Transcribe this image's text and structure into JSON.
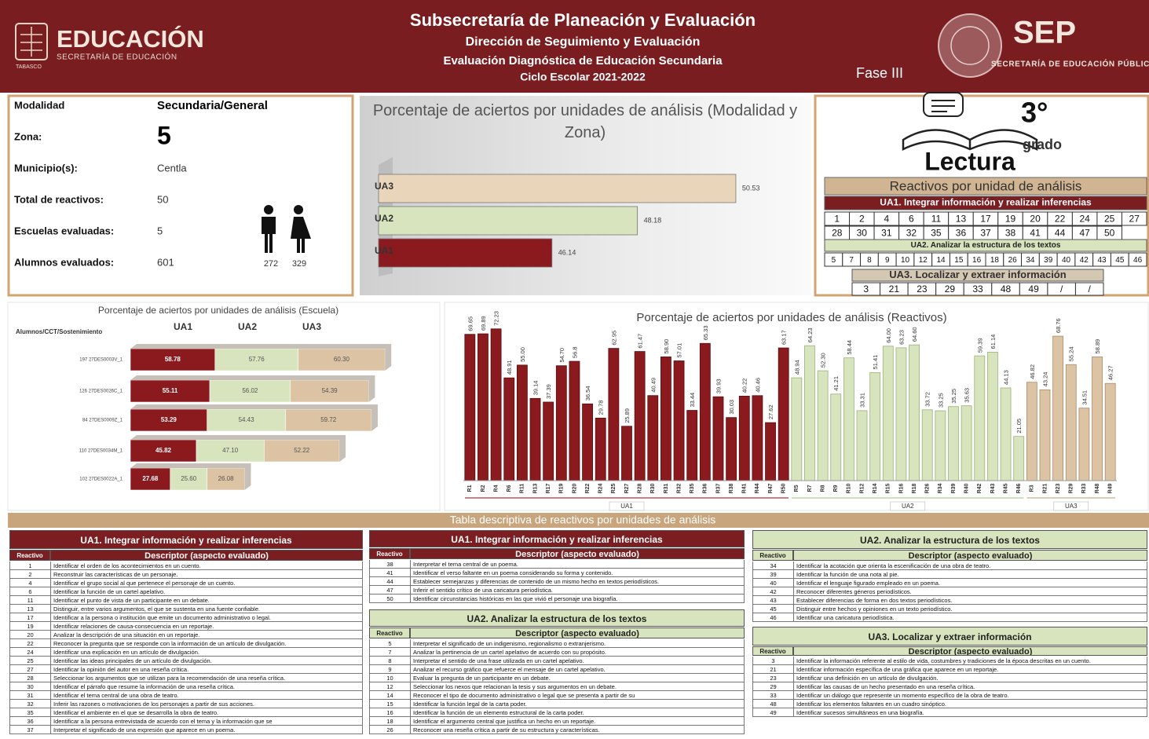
{
  "header": {
    "logo_title": "EDUCACIÓN",
    "logo_subtitle": "SECRETARÍA DE EDUCACIÓN",
    "logo_state": "TABASCO",
    "title": "Subsecretaría de Planeación y Evaluación",
    "subtitle1": "Dirección de Seguimiento y Evaluación",
    "subtitle2": "Evaluación Diagnóstica de Educación Secundaria",
    "subtitle3": "Ciclo Escolar 2021-2022",
    "phase": "Fase III",
    "sep_title": "SEP",
    "sep_subtitle": "SECRETARÍA DE EDUCACIÓN PÚBLICA"
  },
  "info": {
    "rows": [
      [
        "Modalidad",
        "Secundaria/General"
      ],
      [
        "Zona:",
        5
      ],
      [
        "Municipio(s):",
        "Centla"
      ],
      [
        "Total de reactivos:",
        50
      ],
      [
        "Escuelas evaluadas:",
        5
      ],
      [
        "Alumnos evaluados:",
        601
      ]
    ],
    "male": 272,
    "female": 329
  },
  "reactivos": {
    "grade": "3°",
    "grade_word": "grado",
    "subject": "Lectura",
    "title": "Reactivos por unidad de análisis",
    "units": [
      {
        "name": "UA1. Integrar información y realizar inferencias",
        "items": [
          1,
          2,
          4,
          6,
          11,
          13,
          17,
          19,
          20,
          22,
          24,
          25,
          27,
          28,
          30,
          31,
          32,
          35,
          36,
          37,
          38,
          41,
          44,
          47,
          50
        ]
      },
      {
        "name": "UA2. Analizar la estructura de los textos",
        "items": [
          5,
          7,
          8,
          9,
          10,
          12,
          14,
          15,
          16,
          18,
          26,
          34,
          39,
          40,
          42,
          43,
          45,
          46
        ]
      },
      {
        "name": "UA3. Localizar y extraer información",
        "items": [
          3,
          21,
          23,
          29,
          33,
          48,
          49,
          "/",
          "/"
        ]
      }
    ]
  },
  "chart_data": [
    {
      "type": "bar",
      "orientation": "horizontal",
      "title": "Porcentaje de aciertos por unidades de análisis (Modalidad y Zona)",
      "categories": [
        "UA1",
        "UA2",
        "UA3"
      ],
      "values": [
        46.14,
        48.18,
        50.53
      ],
      "colors": [
        "#8b1a1f",
        "#d7e4bd",
        "#e8d5ba"
      ],
      "xlim": [
        42,
        51
      ]
    },
    {
      "type": "bar",
      "orientation": "horizontal",
      "stacked": true,
      "title": "Porcentaje de aciertos por unidades de análisis (Escuela)",
      "category_label": "Alumnos/CCT/Sostenimiento",
      "categories": [
        "197 27DES0003V_1",
        "126 27DES0026C_1",
        "84 27DES0009Z_1",
        "110 27DES0034M_1",
        "102 27DES0022A_1"
      ],
      "series": [
        {
          "name": "UA1",
          "color": "#8b1a1f",
          "values": [
            58.78,
            55.11,
            53.29,
            45.82,
            27.68
          ],
          "value_labels": [
            "58.78",
            "55.11",
            "53.29",
            "45.82",
            "27.68"
          ]
        },
        {
          "name": "UA2",
          "color": "#d7e4bd",
          "values": [
            57.76,
            56.02,
            54.43,
            47.1,
            25.6
          ],
          "value_labels": [
            "57.76",
            "56.02",
            "54.43",
            "47.10",
            "25.60"
          ]
        },
        {
          "name": "UA3",
          "color": "#dcc3a3",
          "values": [
            60.3,
            54.39,
            59.72,
            52.22,
            26.08
          ],
          "value_labels": [
            "60.30",
            "54.39",
            "59.72",
            "52.22",
            "26.08"
          ]
        }
      ],
      "xlim": [
        0,
        180
      ]
    },
    {
      "type": "bar",
      "title": "Porcentaje de aciertos por unidades de análisis (Reactivos)",
      "ylim": [
        0,
        80
      ],
      "series": [
        {
          "name": "UA1",
          "color": "#8b1a1f",
          "categories": [
            "R1",
            "R2",
            "R4",
            "R6",
            "R11",
            "R13",
            "R17",
            "R19",
            "R20",
            "R22",
            "R24",
            "R25",
            "R27",
            "R28",
            "R30",
            "R31",
            "R32",
            "R35",
            "R36",
            "R37",
            "R38",
            "R41",
            "R44",
            "R47",
            "R50"
          ],
          "values": [
            69.65,
            69.89,
            72.23,
            48.91,
            55.0,
            39.14,
            37.39,
            54.7,
            56.8,
            36.54,
            29.78,
            62.95,
            25.89,
            61.47,
            40.49,
            58.9,
            57.01,
            33.44,
            65.33,
            39.93,
            30.03,
            40.22,
            40.46,
            27.62,
            63.17
          ],
          "value_labels": [
            "69.65",
            "69.89",
            "72.23",
            "48.91",
            "55.00",
            "39.14",
            "37.39",
            "54.70",
            "56.8",
            "36.54",
            "29.78",
            "62.95",
            "25.89",
            "61.47",
            "40.49",
            "58.90",
            "57.01",
            "33.44",
            "65.33",
            "39.93",
            "30.03",
            "40.22",
            "40.46",
            "27.62",
            "63.17"
          ]
        },
        {
          "name": "UA2",
          "color": "#d7e4bd",
          "categories": [
            "R5",
            "R7",
            "R8",
            "R9",
            "R10",
            "R12",
            "R14",
            "R15",
            "R16",
            "R18",
            "R26",
            "R34",
            "R39",
            "R40",
            "R42",
            "R43",
            "R45",
            "R46"
          ],
          "values": [
            48.94,
            64.23,
            52.3,
            41.21,
            58.44,
            33.31,
            51.41,
            64.0,
            63.23,
            64.6,
            33.72,
            33.25,
            35.25,
            35.63,
            59.39,
            61.14,
            44.13,
            21.05
          ],
          "value_labels": [
            "48.94",
            "64.23",
            "52.30",
            "41.21",
            "58.44",
            "33.31",
            "51.41",
            "64.00",
            "63.23",
            "64.60",
            "33.72",
            "33.25",
            "35.25",
            "35.63",
            "59.39",
            "61.14",
            "44.13",
            "21.05"
          ]
        },
        {
          "name": "UA3",
          "color": "#dcc3a3",
          "categories": [
            "R3",
            "R21",
            "R23",
            "R29",
            "R33",
            "R48",
            "R49"
          ],
          "values": [
            46.82,
            43.24,
            68.76,
            55.24,
            34.51,
            58.89,
            46.27
          ],
          "value_labels": [
            "46.82",
            "43.24",
            "68.76",
            "55.24",
            "34.51",
            "58.89",
            "46.27"
          ]
        }
      ]
    }
  ],
  "tables": {
    "title": "Tabla descriptiva de reactivos por unidades de análisis",
    "header": [
      "Reactivo",
      "Descriptor (aspecto evaluado)"
    ],
    "blocks": [
      {
        "title": "UA1. Integrar información y realizar inferencias",
        "rows": [
          [
            1,
            "Identificar el orden de los acontecimientos en un cuento."
          ],
          [
            2,
            "Reconstruir las características de un personaje."
          ],
          [
            4,
            "Identificar el grupo social al que pertenece el personaje de un cuento."
          ],
          [
            6,
            "Identificar la función de un cartel apelativo."
          ],
          [
            11,
            "Identificar el punto de vista de un participante en un debate."
          ],
          [
            13,
            "Distinguir, entre varios argumentos, el que se sustenta en una fuente confiable."
          ],
          [
            17,
            "Identificar a la persona o institución que emite un documento administrativo o legal."
          ],
          [
            19,
            "Identificar relaciones de causa-consecuencia en un reportaje."
          ],
          [
            20,
            "Analizar la descripción de una situación en un reportaje."
          ],
          [
            22,
            "Reconocer la pregunta que se responde con la información de un artículo de divulgación."
          ],
          [
            24,
            "Identificar una explicación en un artículo de divulgación."
          ],
          [
            25,
            "Identificar las ideas principales de un artículo de divulgación."
          ],
          [
            27,
            "Identificar la opinión del autor en una reseña crítica."
          ],
          [
            28,
            "Seleccionar los argumentos que se utilizan para la recomendación de una reseña crítica."
          ],
          [
            30,
            "Identificar el párrafo que resume la información de una reseña crítica."
          ],
          [
            31,
            "Identificar el tema central de una obra de teatro."
          ],
          [
            32,
            "Inferir las razones o motivaciones de los personajes a partir de sus acciones."
          ],
          [
            35,
            "Identificar el ambiente en el que se desarrolla la obra de teatro."
          ],
          [
            36,
            "Identificar a la persona entrevistada de acuerdo con el tema y la información que se"
          ],
          [
            37,
            "Interpretar el significado de una expresión que aparece en un poema."
          ]
        ]
      },
      {
        "title": "UA1. Integrar información y realizar inferencias",
        "rows": [
          [
            38,
            "Interpretar el tema central de un poema."
          ],
          [
            41,
            "Identificar el verso faltante en un poema considerando su forma y contenido."
          ],
          [
            44,
            "Establecer semejanzas y diferencias de contenido de un mismo hecho en textos periodísticos."
          ],
          [
            47,
            "Inferir el sentido crítico de una caricatura periodística."
          ],
          [
            50,
            "Identificar circunstancias históricas en las que vivió el personaje una biografía."
          ]
        ]
      },
      {
        "title": "UA2. Analizar la estructura de los textos",
        "rows": [
          [
            5,
            "Interpretar el significado de un indigenismo, regionalismo o extranjerismo."
          ],
          [
            7,
            "Analizar la pertinencia de un cartel apelativo de acuerdo con su propósito."
          ],
          [
            8,
            "Interpretar el sentido de una frase utilizada en un cartel apelativo."
          ],
          [
            9,
            "Analizar el recurso gráfico que refuerce el mensaje de un cartel apelativo."
          ],
          [
            10,
            "Evaluar la pregunta de un participante en un debate."
          ],
          [
            12,
            "Seleccionar los nexos que relacionan la tesis y sus argumentos en un debate."
          ],
          [
            14,
            "Reconocer el tipo de documento administrativo o legal que se presenta a partir de su"
          ],
          [
            15,
            "Identificar la función legal de la carta poder."
          ],
          [
            16,
            "Identificar la función de un elemento estructural de la carta poder."
          ],
          [
            18,
            "Identificar el argumento central que justifica un hecho en un reportaje."
          ],
          [
            26,
            "Reconocer una reseña crítica a partir de su estructura y características."
          ]
        ]
      },
      {
        "title": "UA2. Analizar la estructura de los textos",
        "rows": [
          [
            34,
            "Identificar la acotación que orienta la escenificación de una obra de teatro."
          ],
          [
            39,
            "Identificar la función de una nota al pie."
          ],
          [
            40,
            "Identificar el lenguaje figurado empleado en un poema."
          ],
          [
            42,
            "Reconocer diferentes géneros periodísticos."
          ],
          [
            43,
            "Establecer diferencias de forma en dos textos periodísticos."
          ],
          [
            45,
            "Distinguir entre hechos y opiniones en un texto periodístico."
          ],
          [
            46,
            "Identificar una caricatura periodística."
          ]
        ]
      },
      {
        "title": "UA3. Localizar y extraer información",
        "rows": [
          [
            3,
            "Identificar la información referente al estilo de vida, costumbres y tradiciones de la época descritas en un cuento."
          ],
          [
            21,
            "Identificar información específica de una gráfica que aparece en un reportaje."
          ],
          [
            23,
            "Identificar una definición en un artículo de divulgación."
          ],
          [
            29,
            "Identificar las causas de un hecho presentado en una reseña crítica."
          ],
          [
            33,
            "Identificar un diálogo que represente un momento específico de la obra de teatro."
          ],
          [
            48,
            "Identificar los elementos faltantes en un cuadro sinóptico."
          ],
          [
            49,
            "Identificar sucesos simultáneos en una biografía."
          ]
        ]
      }
    ]
  }
}
